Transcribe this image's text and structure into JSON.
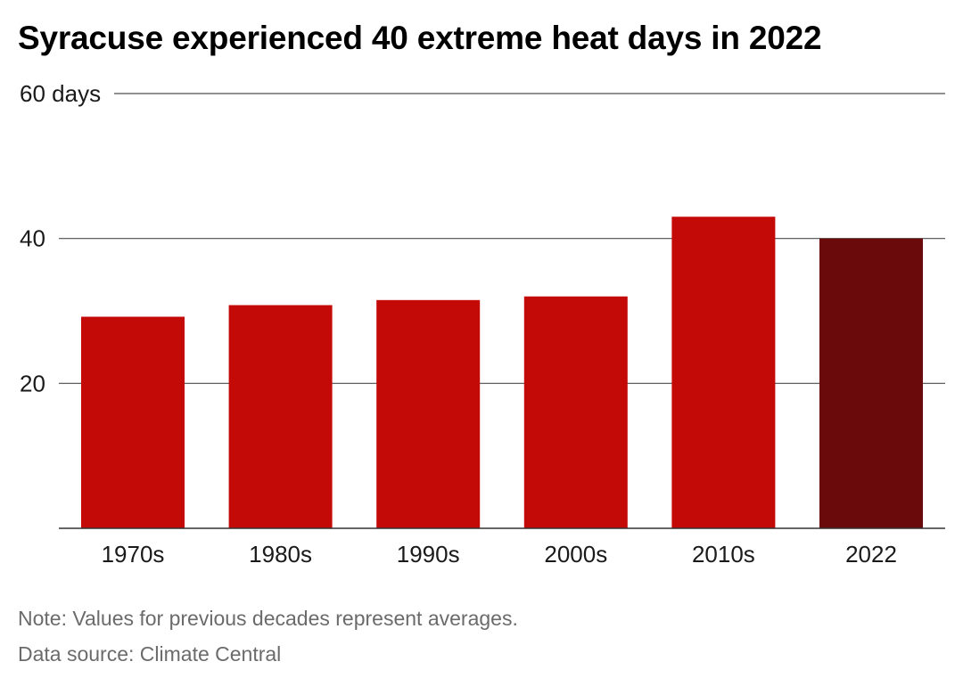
{
  "title": "Syracuse experienced 40 extreme heat days in 2022",
  "colors": {
    "bar": "#c40a07",
    "bar_highlight": "#6b0a0b",
    "grid": "#4d4d4d",
    "axis": "#333333"
  },
  "chart_data": {
    "type": "bar",
    "categories": [
      "1970s",
      "1980s",
      "1990s",
      "2000s",
      "2010s",
      "2022"
    ],
    "values": [
      29.2,
      30.8,
      31.5,
      32.0,
      43.0,
      40.0
    ],
    "highlight_category": "2022",
    "ylim": [
      0,
      60
    ],
    "yticks": [
      20,
      40,
      60
    ],
    "ytick_labels": [
      "20",
      "40",
      "60 days"
    ],
    "xlabel": "",
    "ylabel": "",
    "grid": true,
    "legend": "none"
  },
  "notes": {
    "note": "Note: Values for previous decades represent averages.",
    "source": "Data source: Climate Central"
  }
}
